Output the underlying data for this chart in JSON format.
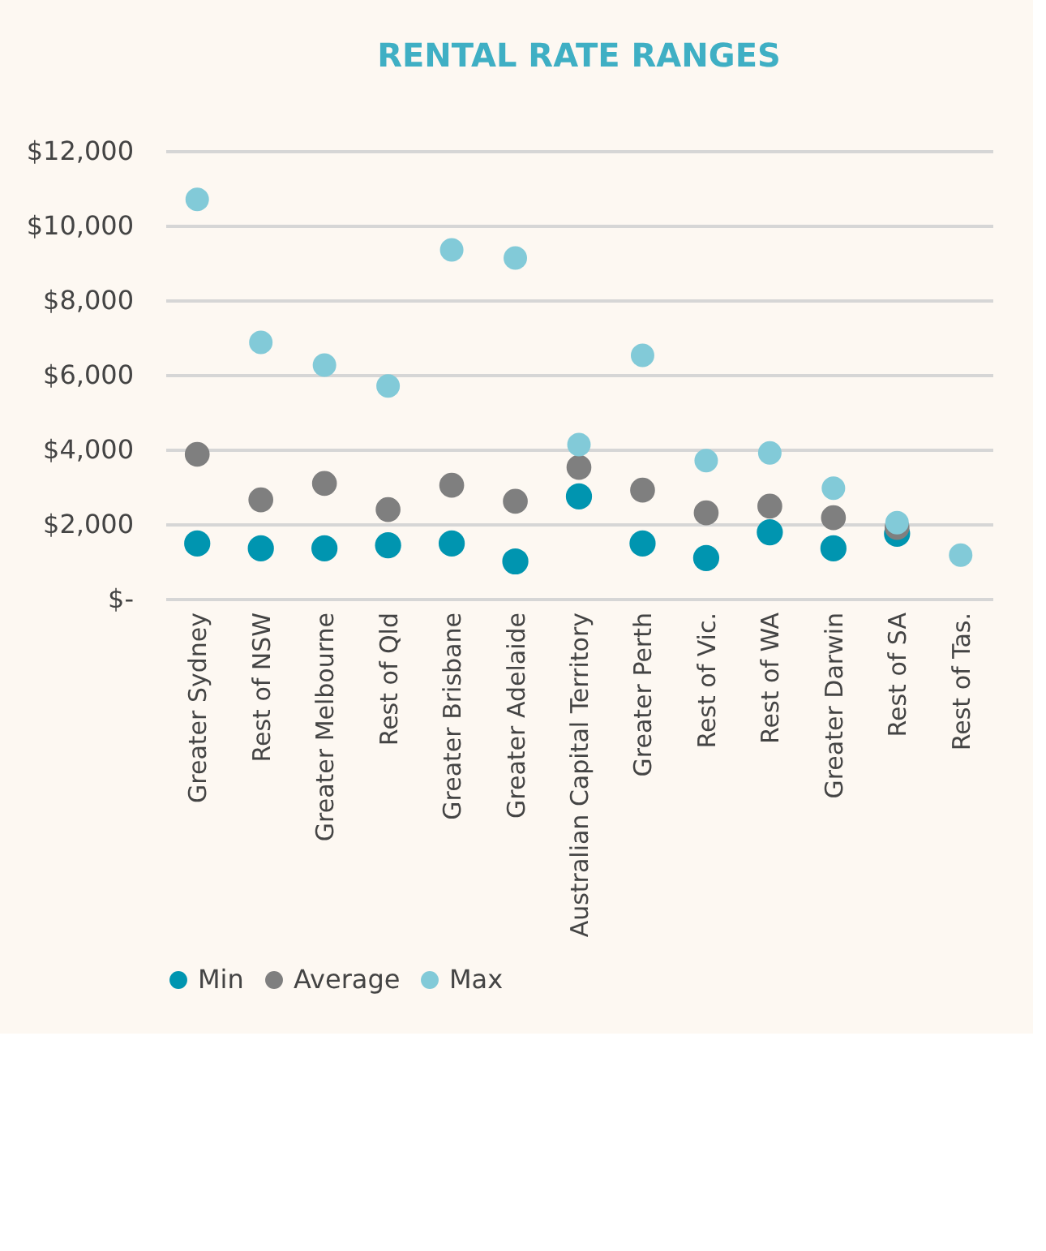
{
  "chart_data": {
    "type": "scatter",
    "title": "RENTAL RATE RANGES",
    "categories": [
      "Greater Sydney",
      "Rest of NSW",
      "Greater Melbourne",
      "Rest of Qld",
      "Greater Brisbane",
      "Greater Adelaide",
      "Australian Capital Territory",
      "Greater Perth",
      "Rest of Vic.",
      "Rest of WA",
      "Greater Darwin",
      "Rest of SA",
      "Rest of Tas."
    ],
    "series": [
      {
        "name": "Min",
        "color": "#0095b0",
        "values": [
          1480,
          1350,
          1350,
          1430,
          1480,
          1000,
          2740,
          1480,
          1090,
          1780,
          1350,
          1740,
          null
        ]
      },
      {
        "name": "Average",
        "color": "#7f7f7f",
        "values": [
          3870,
          2650,
          3090,
          2390,
          3040,
          2610,
          3520,
          2910,
          2300,
          2480,
          2170,
          1910,
          null
        ]
      },
      {
        "name": "Max",
        "color": "#82cad8",
        "values": [
          10700,
          6870,
          6260,
          5700,
          9350,
          9130,
          4130,
          6520,
          3700,
          3910,
          2960,
          2040,
          1170
        ]
      }
    ],
    "ylim": [
      0,
      12000
    ],
    "yticks": [
      {
        "value": 0,
        "label": "$-"
      },
      {
        "value": 2000,
        "label": "$2,000"
      },
      {
        "value": 4000,
        "label": "$4,000"
      },
      {
        "value": 6000,
        "label": "$6,000"
      },
      {
        "value": 8000,
        "label": "$8,000"
      },
      {
        "value": 10000,
        "label": "$10,000"
      },
      {
        "value": 12000,
        "label": "$12,000"
      }
    ],
    "grid": "y",
    "legend": "bottom",
    "marker": "circle"
  }
}
